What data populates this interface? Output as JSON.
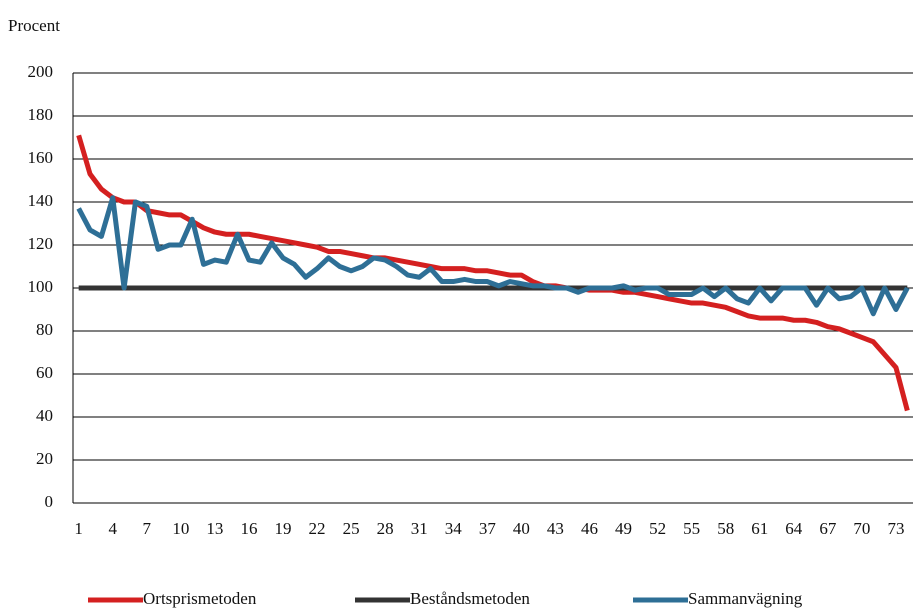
{
  "chart_data": {
    "type": "line",
    "y_label": "Procent",
    "categories": [
      1,
      null,
      null,
      4,
      null,
      null,
      7,
      null,
      null,
      10,
      null,
      null,
      13,
      null,
      null,
      16,
      null,
      null,
      19,
      null,
      null,
      22,
      null,
      null,
      25,
      null,
      null,
      28,
      null,
      null,
      31,
      null,
      null,
      34,
      null,
      null,
      37,
      null,
      null,
      40,
      null,
      null,
      43,
      null,
      null,
      46,
      null,
      null,
      49,
      null,
      null,
      52,
      null,
      null,
      55,
      null,
      null,
      58,
      null,
      null,
      61,
      null,
      null,
      64,
      null,
      null,
      67,
      null,
      null,
      70,
      null,
      null,
      73,
      null
    ],
    "series": [
      {
        "name": "Ortsprismetoden",
        "color": "#d42020",
        "values": [
          171,
          153,
          146,
          142,
          140,
          140,
          136,
          135,
          134,
          134,
          131,
          128,
          126,
          125,
          125,
          125,
          124,
          123,
          122,
          121,
          120,
          119,
          117,
          117,
          116,
          115,
          114,
          114,
          113,
          112,
          111,
          110,
          109,
          109,
          109,
          108,
          108,
          107,
          106,
          106,
          103,
          101,
          101,
          100,
          100,
          99,
          99,
          99,
          98,
          98,
          97,
          96,
          95,
          94,
          93,
          93,
          92,
          91,
          89,
          87,
          86,
          86,
          86,
          85,
          85,
          84,
          82,
          81,
          79,
          77,
          75,
          69,
          63,
          43
        ]
      },
      {
        "name": "Beståndsmetoden",
        "color": "#333333",
        "values": [
          100,
          100,
          100,
          100,
          100,
          100,
          100,
          100,
          100,
          100,
          100,
          100,
          100,
          100,
          100,
          100,
          100,
          100,
          100,
          100,
          100,
          100,
          100,
          100,
          100,
          100,
          100,
          100,
          100,
          100,
          100,
          100,
          100,
          100,
          100,
          100,
          100,
          100,
          100,
          100,
          100,
          100,
          100,
          100,
          100,
          100,
          100,
          100,
          100,
          100,
          100,
          100,
          100,
          100,
          100,
          100,
          100,
          100,
          100,
          100,
          100,
          100,
          100,
          100,
          100,
          100,
          100,
          100,
          100,
          100,
          100,
          100,
          100,
          100
        ]
      },
      {
        "name": "Sammanvägning",
        "color": "#2e6f96",
        "values": [
          137,
          127,
          124,
          142,
          100,
          140,
          138,
          118,
          120,
          120,
          132,
          111,
          113,
          112,
          125,
          113,
          112,
          121,
          114,
          111,
          105,
          109,
          114,
          110,
          108,
          110,
          114,
          113,
          110,
          106,
          105,
          109,
          103,
          103,
          104,
          103,
          103,
          101,
          103,
          102,
          101,
          101,
          100,
          100,
          98,
          100,
          100,
          100,
          101,
          99,
          100,
          100,
          97,
          97,
          97,
          100,
          96,
          100,
          95,
          93,
          100,
          94,
          100,
          100,
          100,
          92,
          100,
          95,
          96,
          100,
          88,
          100,
          90,
          100
        ]
      }
    ],
    "ylim": [
      0,
      200
    ],
    "yticks": [
      0,
      20,
      40,
      60,
      80,
      100,
      120,
      140,
      160,
      180,
      200
    ],
    "grid": true
  }
}
